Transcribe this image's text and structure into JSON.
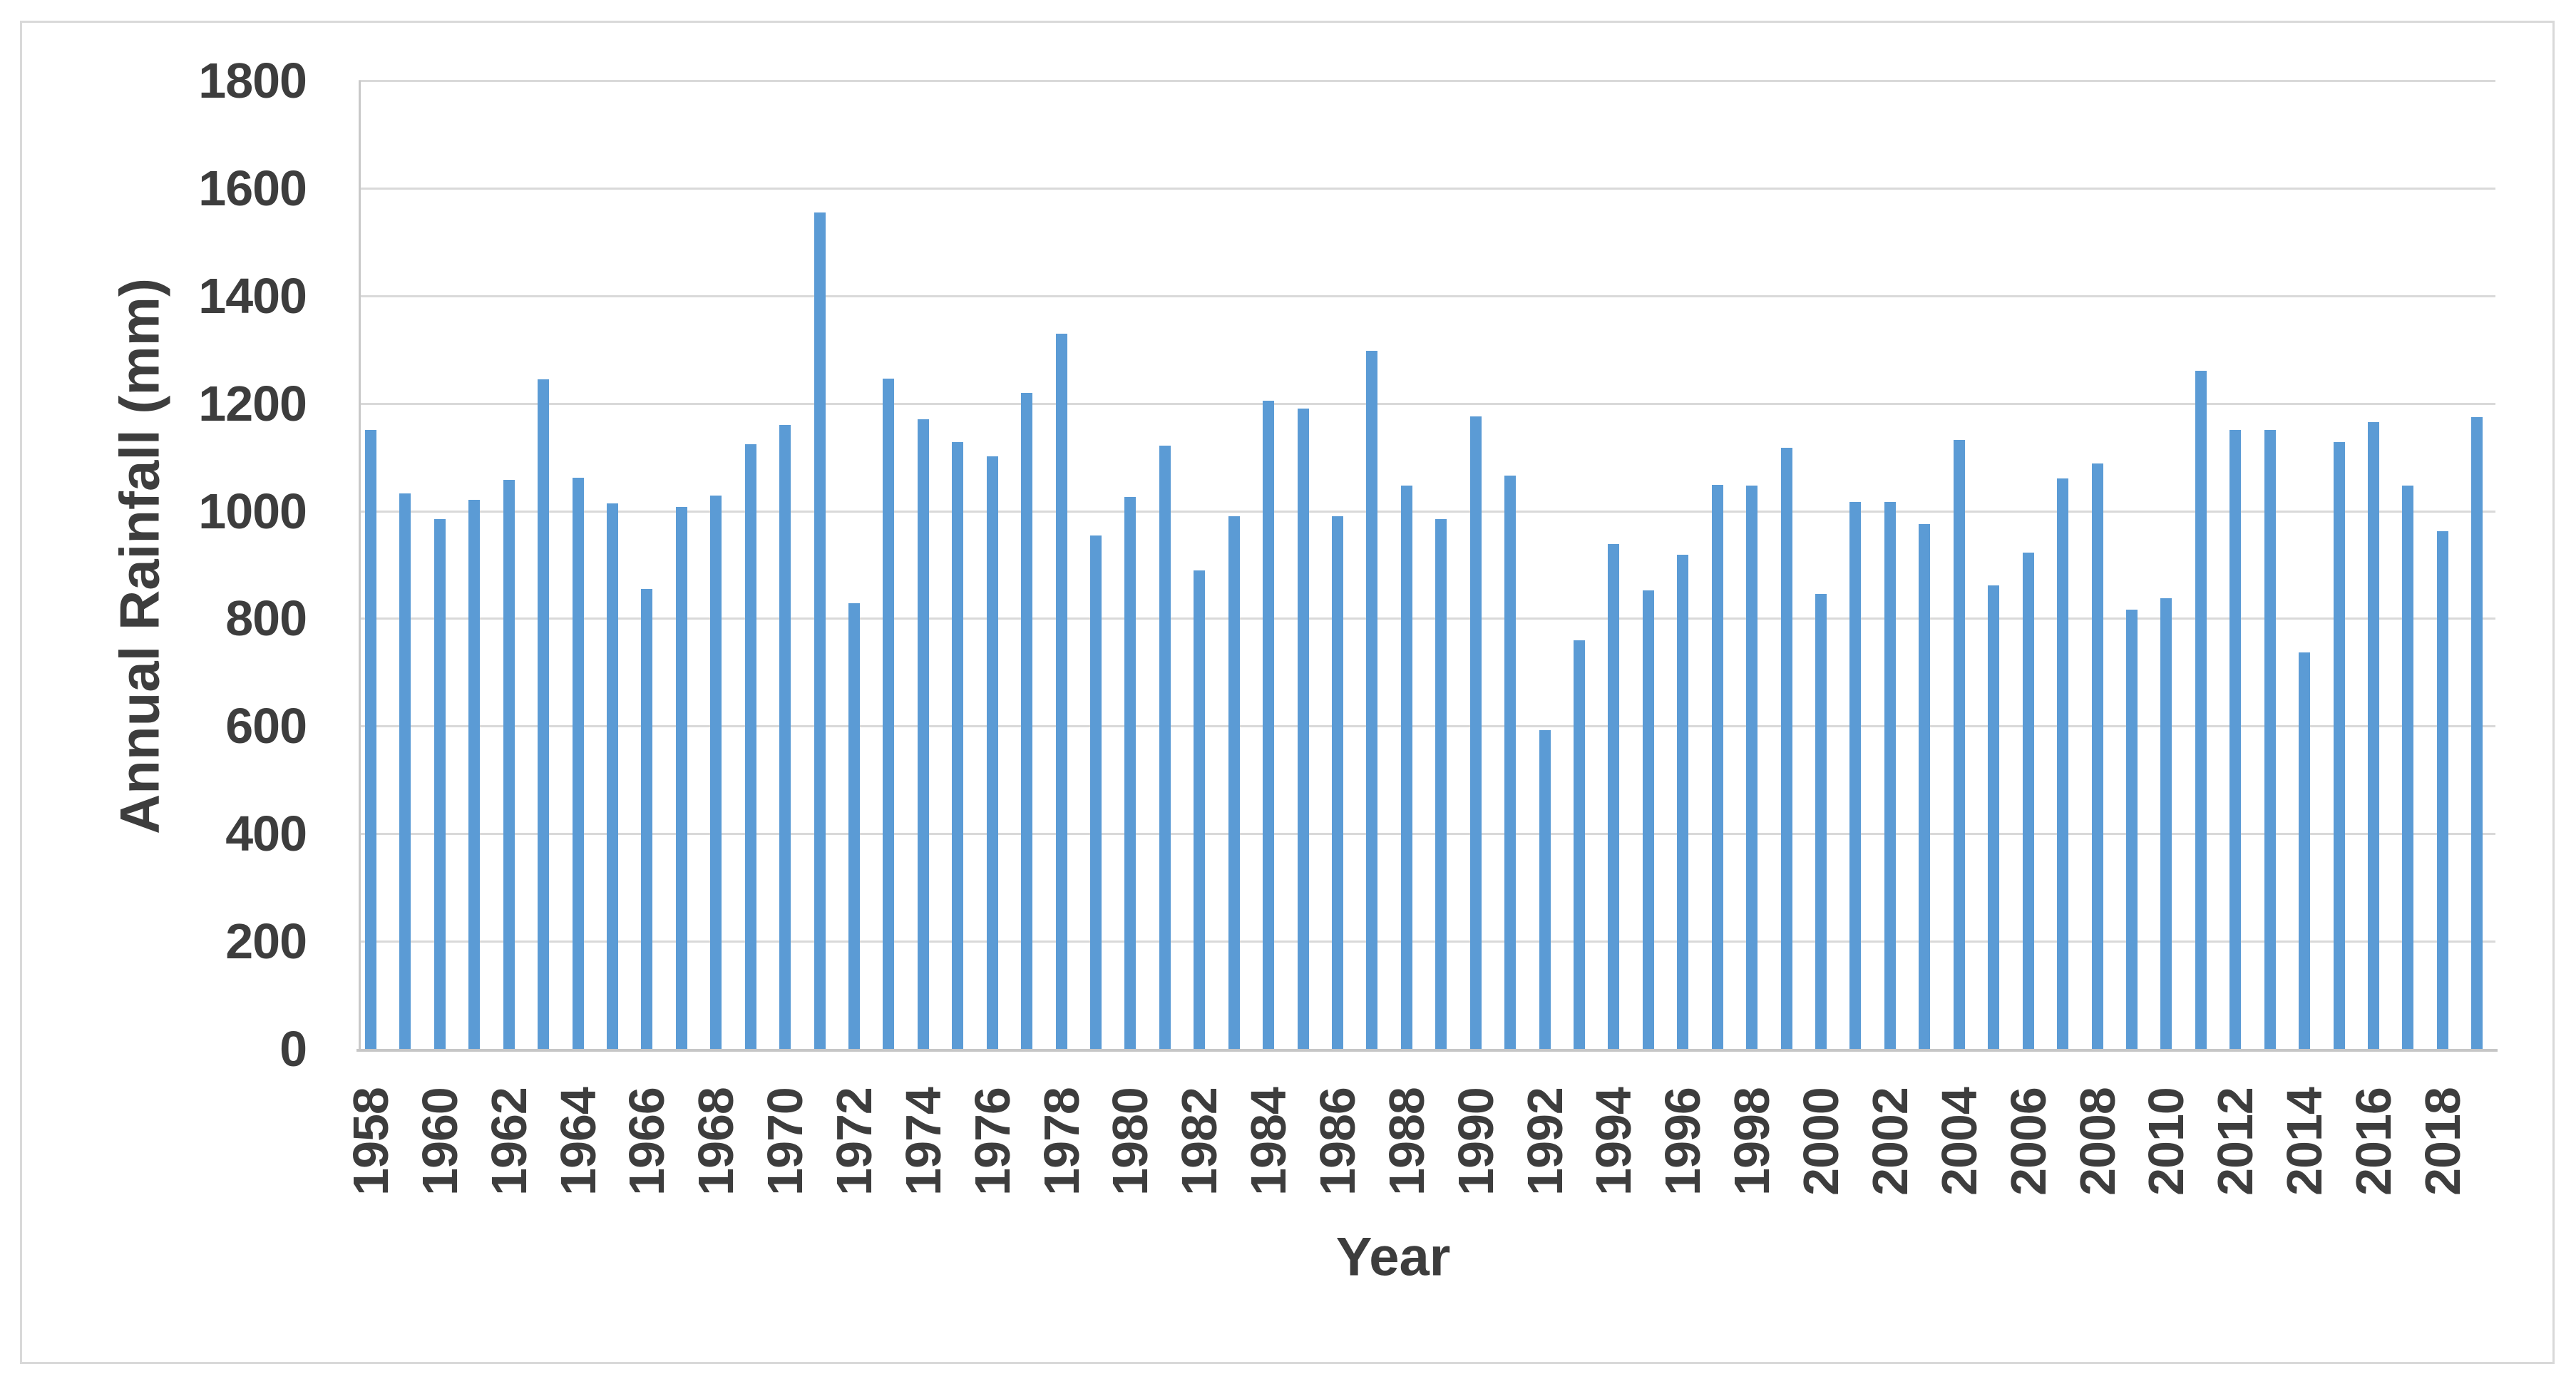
{
  "chart_data": {
    "type": "bar",
    "title": "",
    "xlabel": "Year",
    "ylabel": "Annual Rainfall (mm)",
    "ylim": [
      0,
      1800
    ],
    "grid": true,
    "legend_position": "none",
    "y_ticks": [
      0,
      200,
      400,
      600,
      800,
      1000,
      1200,
      1400,
      1600,
      1800
    ],
    "x_tick_labels": [
      "1958",
      "1960",
      "1962",
      "1964",
      "1966",
      "1968",
      "1970",
      "1972",
      "1974",
      "1976",
      "1978",
      "1980",
      "1982",
      "1984",
      "1986",
      "1988",
      "1990",
      "1992",
      "1994",
      "1996",
      "1998",
      "2000",
      "2002",
      "2004",
      "2006",
      "2008",
      "2010",
      "2012",
      "2014",
      "2016",
      "2018"
    ],
    "categories": [
      1958,
      1959,
      1960,
      1961,
      1962,
      1963,
      1964,
      1965,
      1966,
      1967,
      1968,
      1969,
      1970,
      1971,
      1972,
      1973,
      1974,
      1975,
      1976,
      1977,
      1978,
      1979,
      1980,
      1981,
      1982,
      1983,
      1984,
      1985,
      1986,
      1987,
      1988,
      1989,
      1990,
      1991,
      1992,
      1993,
      1994,
      1995,
      1996,
      1997,
      1998,
      1999,
      2000,
      2001,
      2002,
      2003,
      2004,
      2005,
      2006,
      2007,
      2008,
      2009,
      2010,
      2011,
      2012,
      2013,
      2014,
      2015,
      2016,
      2017,
      2018,
      2019
    ],
    "values": [
      1150,
      1032,
      985,
      1020,
      1058,
      1245,
      1062,
      1014,
      855,
      1008,
      1028,
      1124,
      1160,
      1555,
      828,
      1246,
      1170,
      1128,
      1102,
      1220,
      1330,
      954,
      1026,
      1122,
      890,
      990,
      1205,
      1190,
      990,
      1298,
      1047,
      985,
      1176,
      1066,
      592,
      760,
      938,
      852,
      918,
      1048,
      1047,
      1118,
      846,
      1017,
      1017,
      975,
      1132,
      862,
      922,
      1060,
      1088,
      816,
      838,
      1260,
      1150,
      1150,
      737,
      1128,
      1165,
      1047,
      962,
      1175
    ],
    "bar_color": "#5b9bd5",
    "gridline_color": "#d9d9d9",
    "axis_line_color": "#c6c6c6",
    "text_color": "#3d3d3d",
    "frame_border_color": "#d9d9d9"
  }
}
